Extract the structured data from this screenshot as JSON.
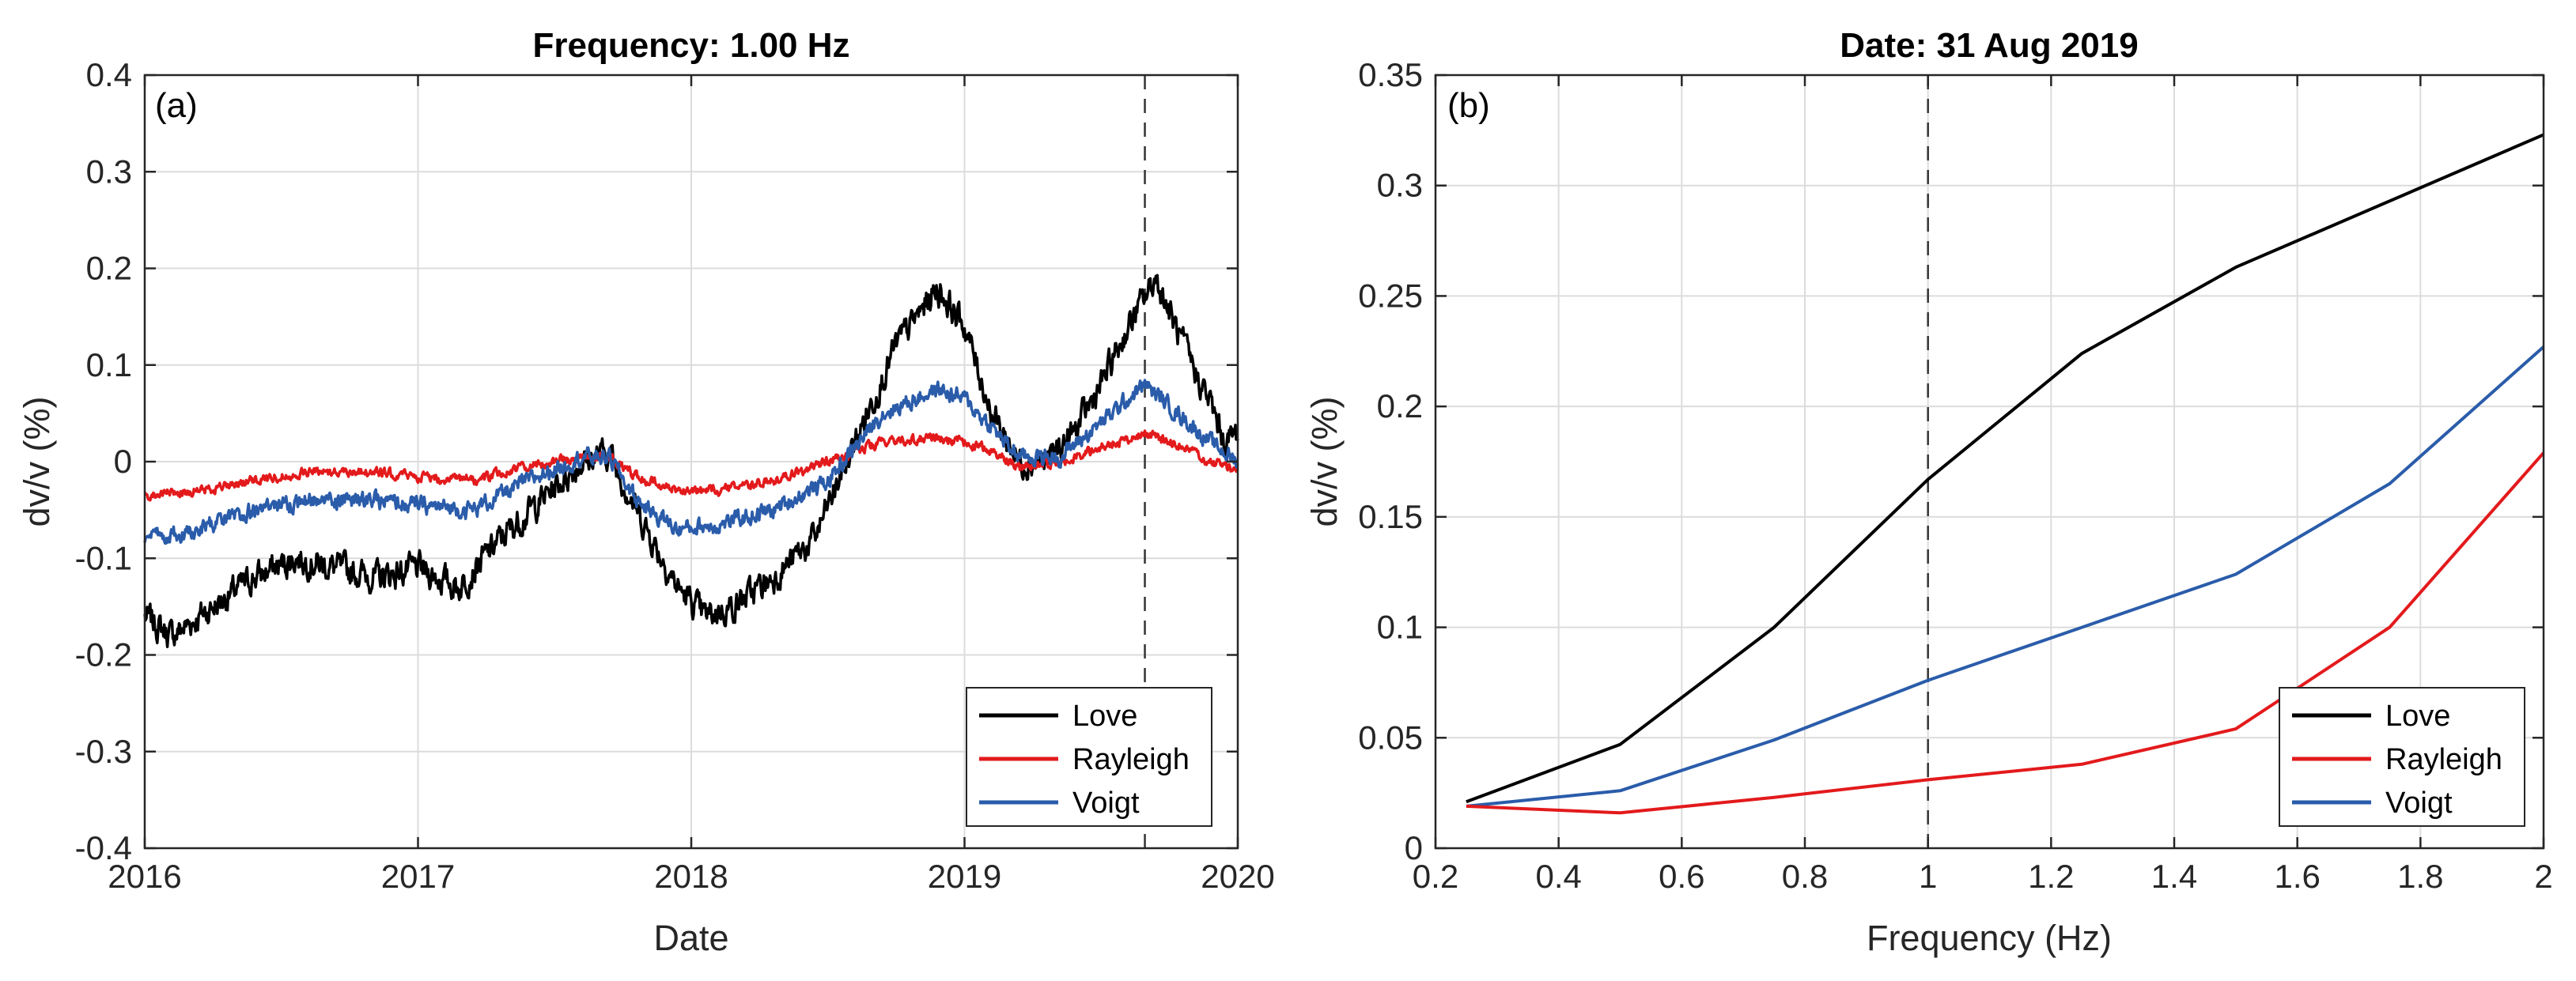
{
  "chart_data": [
    {
      "type": "line",
      "panel": "(a)",
      "title": "Frequency: 1.00 Hz",
      "xlabel": "Date",
      "ylabel": "dv/v (%)",
      "xlim": [
        2016,
        2020
      ],
      "ylim": [
        -0.4,
        0.4
      ],
      "xticks": [
        "2016",
        "2017",
        "2018",
        "2019",
        "2020"
      ],
      "yticks": [
        "-0.4",
        "-0.3",
        "-0.2",
        "-0.1",
        "0",
        "0.1",
        "0.2",
        "0.3",
        "0.4"
      ],
      "grid": true,
      "legend": "bottom-right",
      "marker_line": 2019.66,
      "series": [
        {
          "name": "Love",
          "color": "#000000",
          "x": [
            2016.0,
            2016.1,
            2016.25,
            2016.4,
            2016.55,
            2016.7,
            2016.85,
            2017.0,
            2017.15,
            2017.3,
            2017.45,
            2017.6,
            2017.7,
            2017.8,
            2017.95,
            2018.05,
            2018.15,
            2018.3,
            2018.45,
            2018.6,
            2018.75,
            2018.9,
            2019.0,
            2019.1,
            2019.2,
            2019.3,
            2019.4,
            2019.5,
            2019.6,
            2019.7,
            2019.8,
            2019.9,
            2019.95,
            2020.0
          ],
          "y": [
            -0.16,
            -0.18,
            -0.15,
            -0.12,
            -0.1,
            -0.11,
            -0.12,
            -0.11,
            -0.13,
            -0.08,
            -0.04,
            0.0,
            0.01,
            -0.05,
            -0.13,
            -0.16,
            -0.15,
            -0.12,
            -0.08,
            0.02,
            0.12,
            0.18,
            0.14,
            0.05,
            0.0,
            0.0,
            0.03,
            0.08,
            0.14,
            0.19,
            0.12,
            0.06,
            0.02,
            0.03
          ],
          "noise": 0.012
        },
        {
          "name": "Rayleigh",
          "color": "#e31a1c",
          "x": [
            2016.0,
            2016.2,
            2016.4,
            2016.6,
            2016.8,
            2017.0,
            2017.2,
            2017.4,
            2017.6,
            2017.7,
            2017.8,
            2017.95,
            2018.1,
            2018.3,
            2018.5,
            2018.7,
            2018.9,
            2019.0,
            2019.1,
            2019.2,
            2019.35,
            2019.5,
            2019.66,
            2019.8,
            2019.9,
            2020.0
          ],
          "y": [
            -0.035,
            -0.03,
            -0.02,
            -0.01,
            -0.01,
            -0.015,
            -0.02,
            -0.005,
            0.005,
            0.005,
            -0.015,
            -0.03,
            -0.03,
            -0.02,
            0.0,
            0.02,
            0.025,
            0.02,
            0.01,
            -0.005,
            0.0,
            0.015,
            0.03,
            0.015,
            0.0,
            -0.01
          ],
          "noise": 0.004
        },
        {
          "name": "Voigt",
          "color": "#2a5caa",
          "x": [
            2016.0,
            2016.2,
            2016.4,
            2016.6,
            2016.8,
            2017.0,
            2017.2,
            2017.4,
            2017.6,
            2017.7,
            2017.8,
            2017.95,
            2018.1,
            2018.3,
            2018.5,
            2018.7,
            2018.9,
            2019.0,
            2019.1,
            2019.2,
            2019.35,
            2019.5,
            2019.66,
            2019.8,
            2019.9,
            2020.0
          ],
          "y": [
            -0.08,
            -0.07,
            -0.05,
            -0.04,
            -0.04,
            -0.045,
            -0.05,
            -0.02,
            0.005,
            0.005,
            -0.04,
            -0.07,
            -0.065,
            -0.05,
            -0.02,
            0.05,
            0.075,
            0.065,
            0.035,
            0.005,
            0.005,
            0.04,
            0.08,
            0.045,
            0.02,
            0.0
          ],
          "noise": 0.007
        }
      ]
    },
    {
      "type": "line",
      "panel": "(b)",
      "title": "Date: 31 Aug 2019",
      "xlabel": "Frequency (Hz)",
      "ylabel": "dv/v (%)",
      "xlim": [
        0.2,
        2.0
      ],
      "ylim": [
        0,
        0.35
      ],
      "xticks": [
        "0.2",
        "0.4",
        "0.6",
        "0.8",
        "1",
        "1.2",
        "1.4",
        "1.6",
        "1.8",
        "2"
      ],
      "yticks": [
        "0",
        "0.05",
        "0.1",
        "0.15",
        "0.2",
        "0.25",
        "0.3",
        "0.35"
      ],
      "grid": true,
      "legend": "bottom-right",
      "marker_line": 1.0,
      "series": [
        {
          "name": "Love",
          "color": "#000000",
          "x": [
            0.25,
            0.5,
            0.75,
            1.0,
            1.25,
            1.5,
            1.75,
            2.0
          ],
          "y": [
            0.021,
            0.047,
            0.1,
            0.167,
            0.224,
            0.263,
            0.293,
            0.323
          ]
        },
        {
          "name": "Rayleigh",
          "color": "#e31a1c",
          "x": [
            0.25,
            0.5,
            0.75,
            1.0,
            1.25,
            1.5,
            1.75,
            2.0
          ],
          "y": [
            0.019,
            0.016,
            0.023,
            0.031,
            0.038,
            0.054,
            0.1,
            0.179
          ]
        },
        {
          "name": "Voigt",
          "color": "#2a5caa",
          "x": [
            0.25,
            0.5,
            0.75,
            1.0,
            1.25,
            1.5,
            1.75,
            2.0
          ],
          "y": [
            0.019,
            0.026,
            0.049,
            0.076,
            0.1,
            0.124,
            0.165,
            0.227
          ]
        }
      ]
    }
  ]
}
